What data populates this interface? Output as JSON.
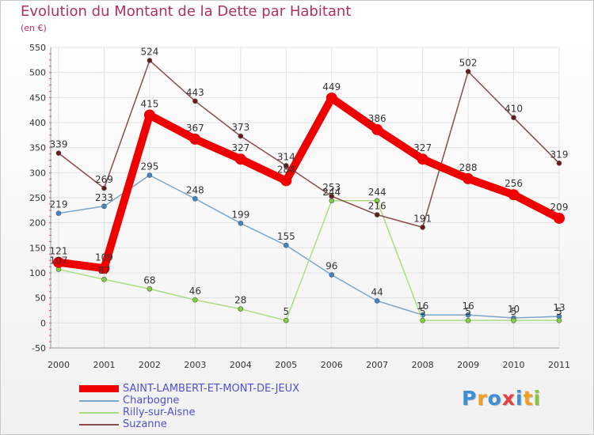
{
  "header": {
    "title": "Evolution du Montant de la Dette par Habitant",
    "subtitle": "(en €)"
  },
  "logo": {
    "text": "Proxiti",
    "letters": [
      {
        "ch": "P",
        "color": "#3a8fd8"
      },
      {
        "ch": "r",
        "color": "#f0a020"
      },
      {
        "ch": "o",
        "color": "#3a8fd8"
      },
      {
        "ch": "x",
        "color": "#e84040"
      },
      {
        "ch": "i",
        "color": "#3a8fd8"
      },
      {
        "ch": "t",
        "color": "#f0a020"
      },
      {
        "ch": "i",
        "color": "#8cc63f"
      }
    ]
  },
  "chart_data": {
    "type": "line",
    "title": "Evolution du Montant de la Dette par Habitant",
    "subtitle": "(en €)",
    "x": [
      "2000",
      "2001",
      "2002",
      "2003",
      "2004",
      "2005",
      "2006",
      "2007",
      "2008",
      "2009",
      "2010",
      "2011"
    ],
    "ylim": [
      -50,
      550
    ],
    "yticks": [
      -50,
      0,
      50,
      100,
      150,
      200,
      250,
      300,
      350,
      400,
      450,
      500,
      550
    ],
    "grid": true,
    "legend_position": "bottom-left",
    "series": [
      {
        "name": "SAINT-LAMBERT-ET-MONT-DE-JEUX",
        "color": "#ee0000",
        "marker_color": "#ee0000",
        "emphasis": true,
        "values": [
          121,
          109,
          415,
          367,
          327,
          284,
          449,
          386,
          327,
          288,
          256,
          209
        ],
        "labels": [
          "121",
          "109",
          "415",
          "367",
          "327",
          "284",
          "449",
          "386",
          "327",
          "288",
          "256",
          "209"
        ]
      },
      {
        "name": "Charbogne",
        "color": "#7aa6cc",
        "marker_color": "#3f86c8",
        "emphasis": false,
        "values": [
          219,
          233,
          295,
          248,
          199,
          155,
          96,
          44,
          16,
          16,
          10,
          13
        ],
        "labels": [
          "219",
          "233",
          "295",
          "248",
          "199",
          "155",
          "96",
          "44",
          "16",
          "16",
          "10",
          "13"
        ]
      },
      {
        "name": "Rilly-sur-Aisne",
        "color": "#a8de80",
        "marker_color": "#7fd23a",
        "emphasis": false,
        "values": [
          107,
          87,
          68,
          46,
          28,
          5,
          244,
          244,
          5,
          5,
          5,
          5
        ],
        "labels": [
          "107",
          "87",
          "68",
          "46",
          "28",
          "5",
          "244",
          "244",
          "5",
          "5",
          "5",
          "5"
        ]
      },
      {
        "name": "Suzanne",
        "color": "#8a4b4b",
        "marker_color": "#6b1a1a",
        "emphasis": false,
        "values": [
          339,
          269,
          524,
          443,
          373,
          314,
          253,
          216,
          191,
          502,
          410,
          319
        ],
        "labels": [
          "339",
          "269",
          "524",
          "443",
          "373",
          "314",
          "253",
          "216",
          "191",
          "502",
          "410",
          "319"
        ]
      }
    ]
  }
}
